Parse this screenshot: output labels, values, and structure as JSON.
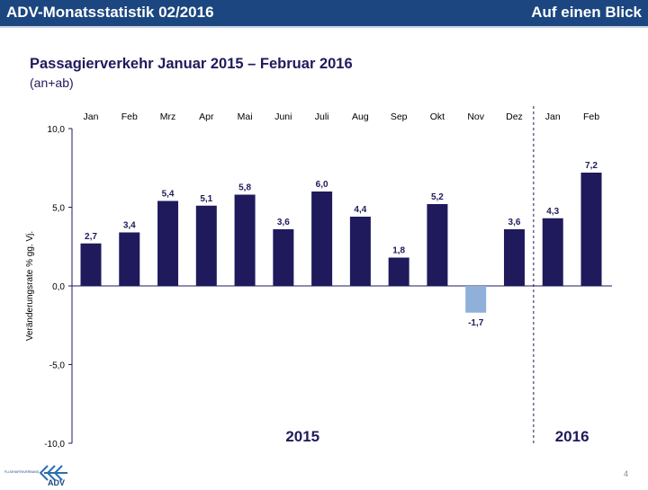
{
  "header": {
    "title": "ADV-Monatsstatistik 02/2016",
    "section": "Auf einen Blick"
  },
  "page_number": "4",
  "logo": {
    "text": "FLUGHAFENVERBAND ADV"
  },
  "chart_data": {
    "type": "bar",
    "title": "Passagierverkehr Januar 2015 – Februar 2016",
    "subtitle": "(an+ab)",
    "ylabel": "Veränderungsrate % gg. Vj.",
    "ylim": [
      -10,
      10
    ],
    "yticks": [
      "10,0",
      "5,0",
      "0,0",
      "-5,0",
      "-10,0"
    ],
    "categories": [
      "Jan",
      "Feb",
      "Mrz",
      "Apr",
      "Mai",
      "Juni",
      "Juli",
      "Aug",
      "Sep",
      "Okt",
      "Nov",
      "Dez",
      "Jan",
      "Feb"
    ],
    "values": [
      2.7,
      3.4,
      5.4,
      5.1,
      5.8,
      3.6,
      6.0,
      4.4,
      1.8,
      5.2,
      -1.7,
      3.6,
      4.3,
      7.2
    ],
    "labels": [
      "2,7",
      "3,4",
      "5,4",
      "5,1",
      "5,8",
      "3,6",
      "6,0",
      "4,4",
      "1,8",
      "5,2",
      "-1,7",
      "3,6",
      "4,3",
      "7,2"
    ],
    "groups": [
      {
        "label": "2015",
        "months": 12
      },
      {
        "label": "2016",
        "months": 2
      }
    ],
    "colors": {
      "positive": "#1f1a5c",
      "negative": "#8fb1d9"
    }
  }
}
